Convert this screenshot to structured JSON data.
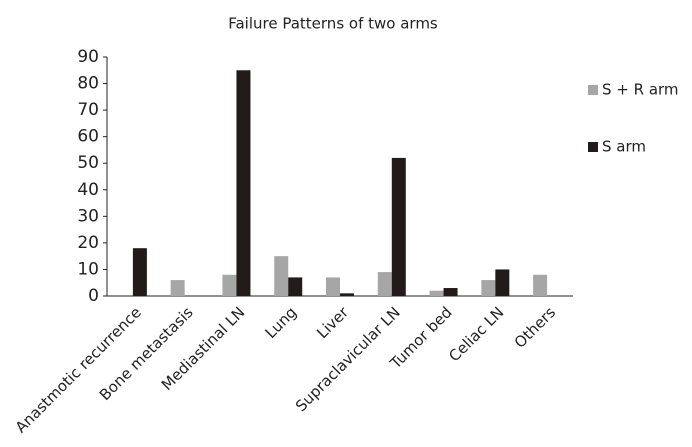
{
  "chart_data": {
    "type": "bar",
    "title": "Failure Patterns of two arms",
    "categories": [
      "Anastmotic recurrence",
      "Bone metastasis",
      "Mediastinal LN",
      "Lung",
      "Liver",
      "Supraclavicular LN",
      "Tumor bed",
      "Celiac LN",
      "Others"
    ],
    "series": [
      {
        "name": "S + R arm",
        "color": "#a6a6a6",
        "values": [
          0,
          6,
          8,
          15,
          7,
          9,
          2,
          6,
          8
        ]
      },
      {
        "name": "S arm",
        "color": "#231a1a",
        "values": [
          18,
          0,
          85,
          7,
          1,
          52,
          3,
          10,
          0
        ]
      }
    ],
    "ylim": [
      0,
      90
    ],
    "yticks": [
      0,
      10,
      20,
      30,
      40,
      50,
      60,
      70,
      80,
      90
    ],
    "grid": false,
    "legend": "right"
  }
}
